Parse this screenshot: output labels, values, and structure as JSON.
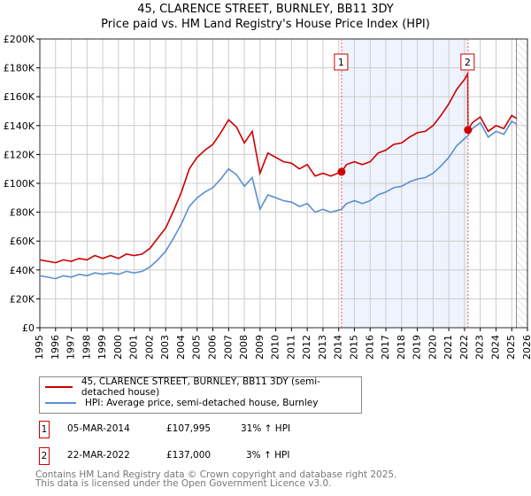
{
  "title_line1": "45, CLARENCE STREET, BURNLEY, BB11 3DY",
  "title_line2": "Price paid vs. HM Land Registry's House Price Index (HPI)",
  "colors": {
    "property": "#cc0000",
    "hpi": "#5b8fd0",
    "band": "#eef3fd"
  },
  "chart_data": {
    "type": "line",
    "xlim": [
      1995,
      2026
    ],
    "ylim": [
      0,
      200000
    ],
    "x_ticks": [
      "1995",
      "1996",
      "1997",
      "1998",
      "1999",
      "2000",
      "2001",
      "2002",
      "2003",
      "2004",
      "2005",
      "2006",
      "2007",
      "2008",
      "2009",
      "2010",
      "2011",
      "2012",
      "2013",
      "2014",
      "2015",
      "2016",
      "2017",
      "2018",
      "2019",
      "2020",
      "2021",
      "2022",
      "2023",
      "2024",
      "2025",
      "2026"
    ],
    "y_ticks": [
      {
        "v": 0,
        "label": "£0"
      },
      {
        "v": 20000,
        "label": "£20K"
      },
      {
        "v": 40000,
        "label": "£40K"
      },
      {
        "v": 60000,
        "label": "£60K"
      },
      {
        "v": 80000,
        "label": "£80K"
      },
      {
        "v": 100000,
        "label": "£100K"
      },
      {
        "v": 120000,
        "label": "£120K"
      },
      {
        "v": 140000,
        "label": "£140K"
      },
      {
        "v": 160000,
        "label": "£160K"
      },
      {
        "v": 180000,
        "label": "£180K"
      },
      {
        "v": 200000,
        "label": "£200K"
      }
    ],
    "grid": true,
    "forecast_from": 2025.3,
    "series": [
      {
        "name": "45, CLARENCE STREET, BURNLEY, BB11 3DY (semi-detached house)",
        "x": [
          1995,
          1995.5,
          1996,
          1996.5,
          1997,
          1997.5,
          1998,
          1998.5,
          1999,
          1999.5,
          2000,
          2000.5,
          2001,
          2001.5,
          2002,
          2002.5,
          2003,
          2003.5,
          2004,
          2004.5,
          2005,
          2005.5,
          2006,
          2006.5,
          2007,
          2007.5,
          2008,
          2008.5,
          2009,
          2009.5,
          2010,
          2010.5,
          2011,
          2011.5,
          2012,
          2012.5,
          2013,
          2013.5,
          2014.18,
          2014.5,
          2015,
          2015.5,
          2016,
          2016.5,
          2017,
          2017.5,
          2018,
          2018.5,
          2019,
          2019.5,
          2020,
          2020.5,
          2021,
          2021.5,
          2022,
          2022.2,
          2022.22,
          2022.5,
          2023,
          2023.5,
          2024,
          2024.5,
          2025,
          2025.3
        ],
        "y": [
          47,
          46,
          45,
          47,
          46,
          48,
          47,
          50,
          48,
          50,
          48,
          51,
          50,
          51,
          55,
          62,
          69,
          81,
          94,
          110,
          118,
          123,
          127,
          135,
          144,
          139,
          128,
          136,
          107,
          121,
          118,
          115,
          114,
          110,
          113,
          105,
          107,
          105,
          108,
          113,
          115,
          113,
          115,
          121,
          123,
          127,
          128,
          132,
          135,
          136,
          140,
          147,
          155,
          165,
          172,
          176,
          137,
          142,
          146,
          136,
          140,
          138,
          147,
          145
        ],
        "unit": "thousand GBP"
      },
      {
        "name": "HPI: Average price, semi-detached house, Burnley",
        "x": [
          1995,
          1995.5,
          1996,
          1996.5,
          1997,
          1997.5,
          1998,
          1998.5,
          1999,
          1999.5,
          2000,
          2000.5,
          2001,
          2001.5,
          2002,
          2002.5,
          2003,
          2003.5,
          2004,
          2004.5,
          2005,
          2005.5,
          2006,
          2006.5,
          2007,
          2007.5,
          2008,
          2008.5,
          2009,
          2009.5,
          2010,
          2010.5,
          2011,
          2011.5,
          2012,
          2012.5,
          2013,
          2013.5,
          2014.18,
          2014.5,
          2015,
          2015.5,
          2016,
          2016.5,
          2017,
          2017.5,
          2018,
          2018.5,
          2019,
          2019.5,
          2020,
          2020.5,
          2021,
          2021.5,
          2022,
          2022.22,
          2022.5,
          2023,
          2023.5,
          2024,
          2024.5,
          2025,
          2025.3
        ],
        "y": [
          36,
          35,
          34,
          36,
          35,
          37,
          36,
          38,
          37,
          38,
          37,
          39,
          38,
          39,
          42,
          47,
          53,
          62,
          72,
          84,
          90,
          94,
          97,
          103,
          110,
          106,
          98,
          104,
          82,
          92,
          90,
          88,
          87,
          84,
          86,
          80,
          82,
          80,
          82,
          86,
          88,
          86,
          88,
          92,
          94,
          97,
          98,
          101,
          103,
          104,
          107,
          112,
          118,
          126,
          131,
          133,
          138,
          142,
          132,
          136,
          134,
          143,
          141
        ],
        "unit": "thousand GBP"
      }
    ],
    "annotations": [
      {
        "label": "1",
        "x": 2014.18,
        "y": 107995
      },
      {
        "label": "2",
        "x": 2022.22,
        "y": 137000
      }
    ]
  },
  "legend": {
    "property": "45, CLARENCE STREET, BURNLEY, BB11 3DY (semi-detached house)",
    "hpi": "HPI: Average price, semi-detached house, Burnley"
  },
  "transactions": [
    {
      "num": "1",
      "date": "05-MAR-2014",
      "price": "£107,995",
      "hpi": "31% ↑ HPI"
    },
    {
      "num": "2",
      "date": "22-MAR-2022",
      "price": "£137,000",
      "hpi": "3% ↑ HPI"
    }
  ],
  "footer": {
    "line1": "Contains HM Land Registry data © Crown copyright and database right 2025.",
    "line2": "This data is licensed under the Open Government Licence v3.0."
  }
}
